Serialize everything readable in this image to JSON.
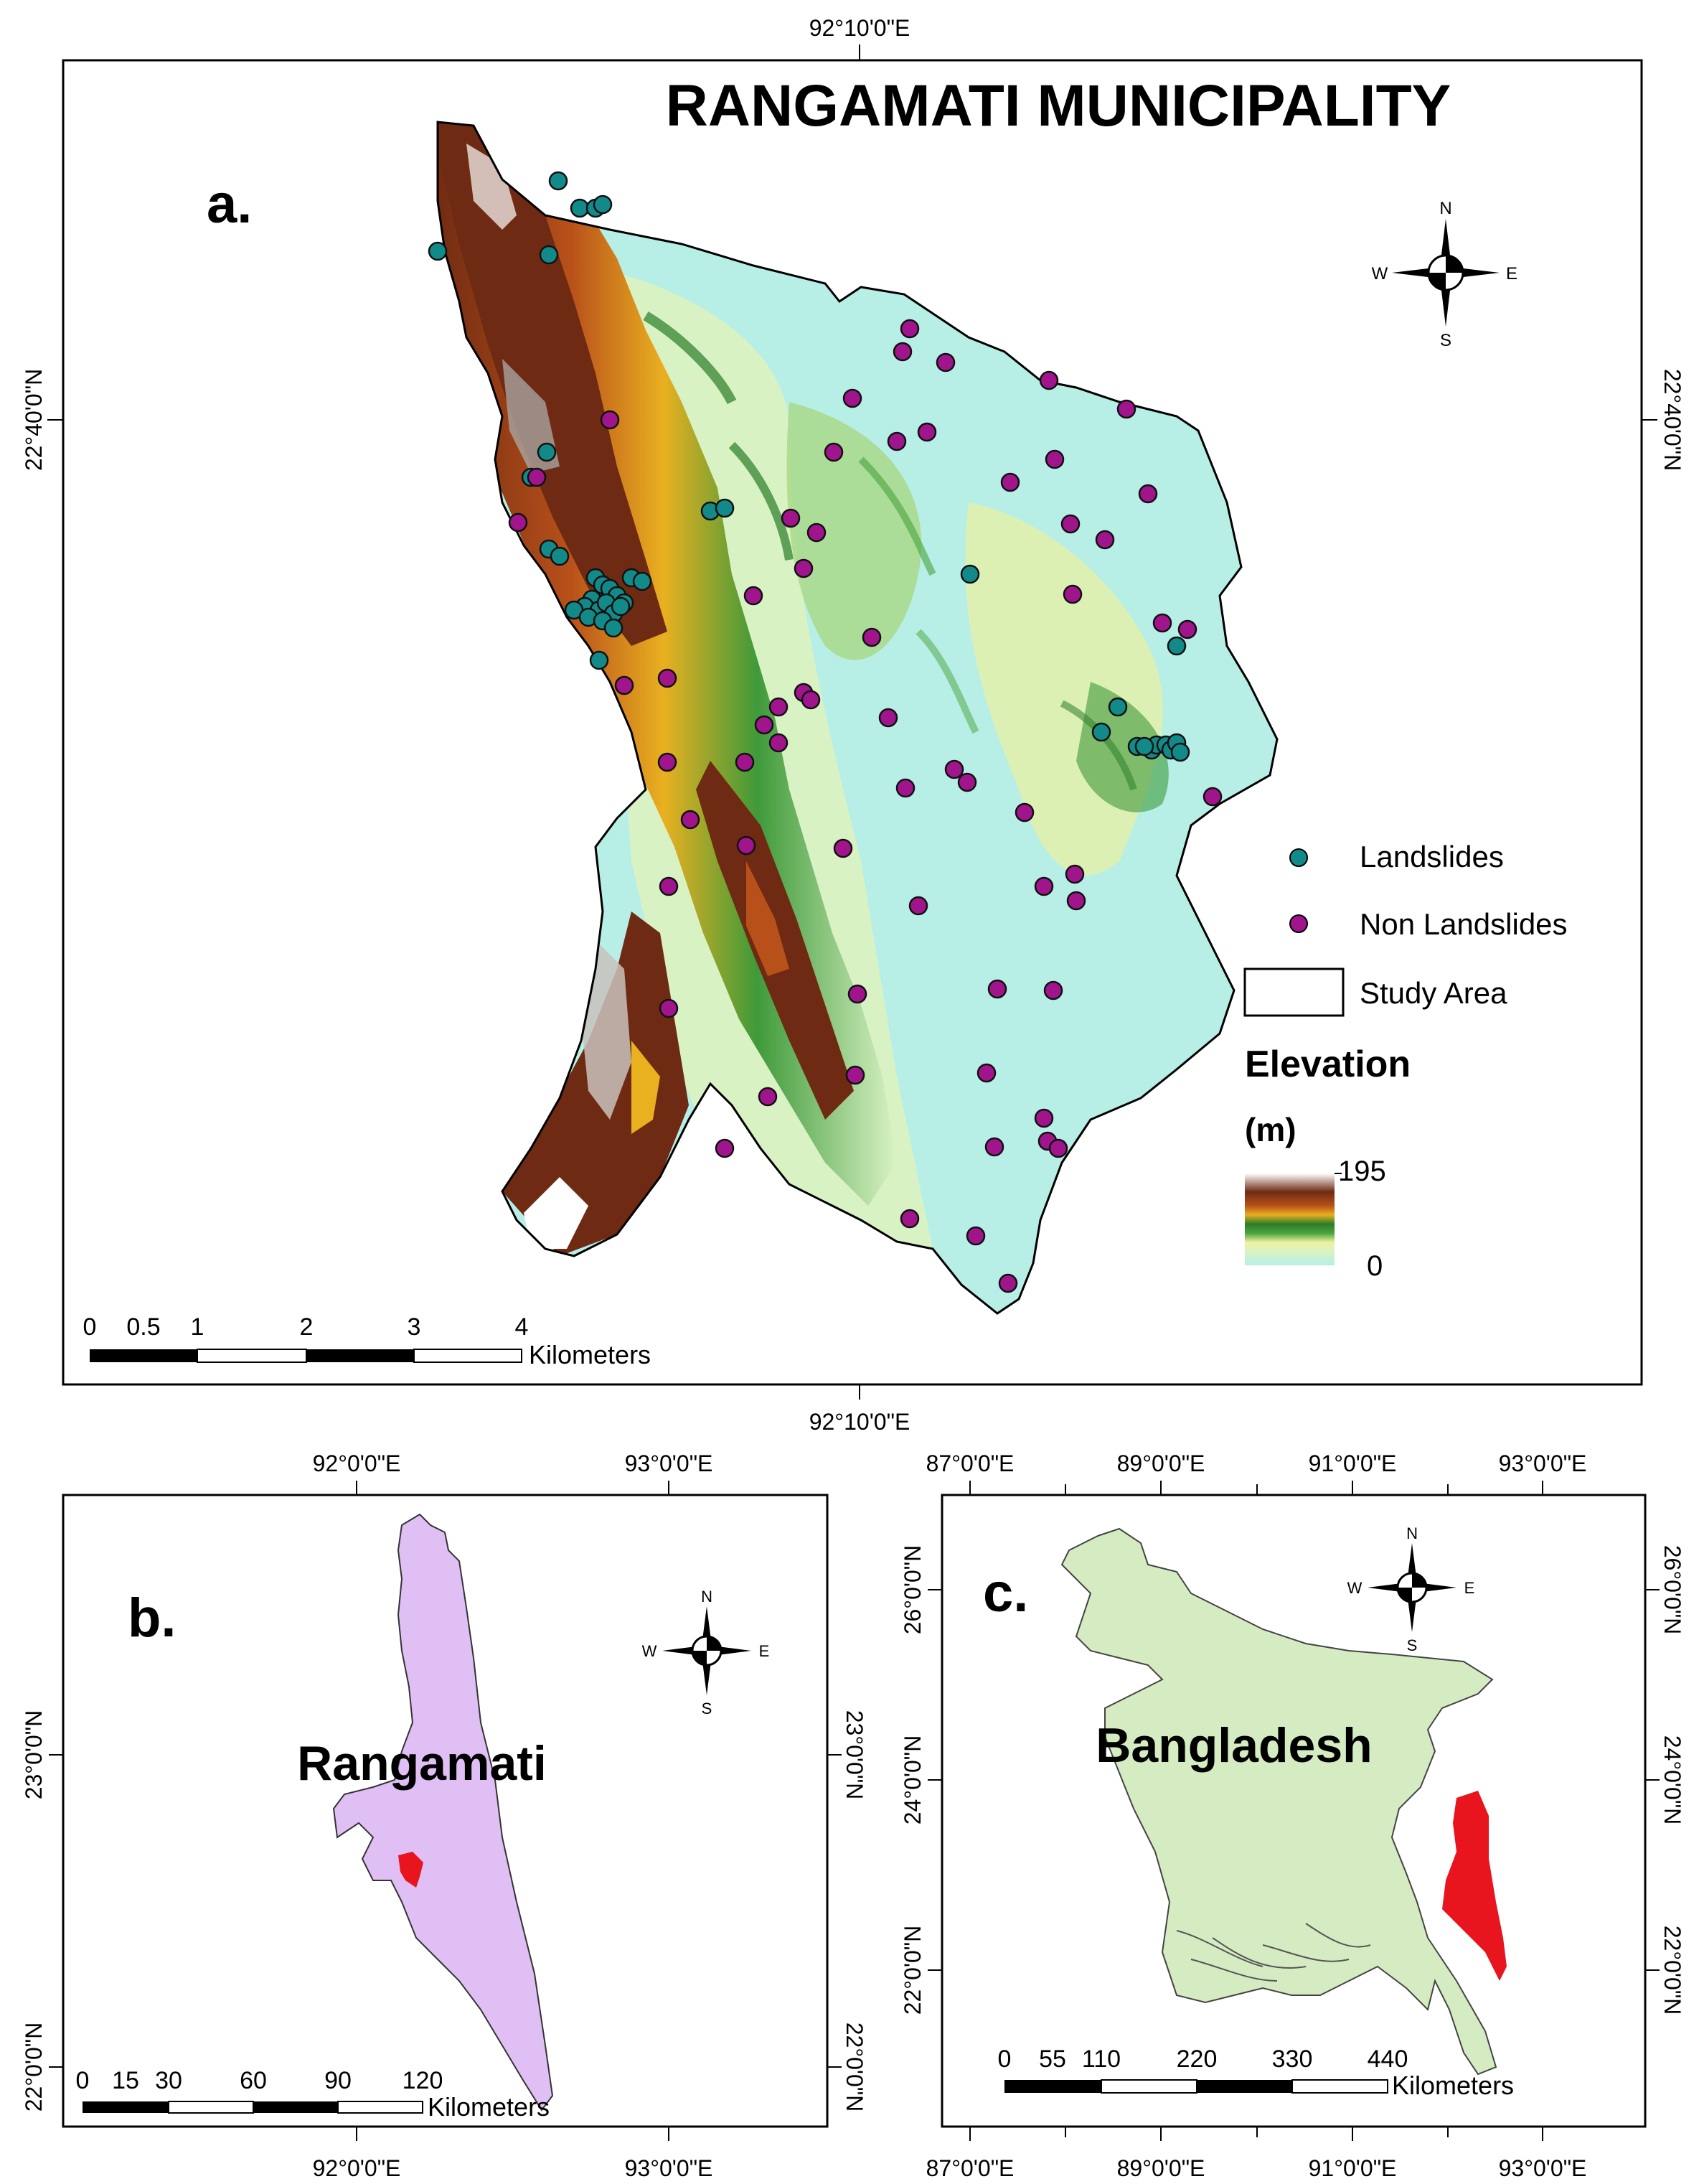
{
  "panel_a": {
    "title": "RANGAMATI MUNICIPALITY",
    "panel_label": "a.",
    "coords": {
      "top": "92°10'0\"E",
      "bottom": "92°10'0\"E",
      "left": "22°40'0\"N",
      "right": "22°40'0\"N"
    },
    "north_arrow": {
      "n": "N",
      "s": "S",
      "e": "E",
      "w": "W"
    },
    "legend": {
      "landslides": "Landslides",
      "non_landslides": "Non Landslides",
      "study_area": "Study Area",
      "elevation_title": "Elevation",
      "elevation_unit": "(m)",
      "elev_max": "195",
      "elev_min": "0",
      "colors": {
        "landslide": "#138a8a",
        "non_landslide": "#a0148c",
        "low": "#b7efe6",
        "mid_low": "#e6f0a8",
        "mid": "#3f9a3a",
        "mid_high": "#e2a21c",
        "high": "#7a2e12",
        "top": "#ffffff"
      }
    },
    "scale": {
      "ticks": [
        "0",
        "0.5",
        "1",
        "2",
        "3",
        "4"
      ],
      "unit": "Kilometers"
    }
  },
  "panel_b": {
    "panel_label": "b.",
    "region_name": "Rangamati",
    "coords": {
      "top": [
        "92°0'0\"E",
        "93°0'0\"E"
      ],
      "bottom": [
        "92°0'0\"E",
        "93°0'0\"E"
      ],
      "left": [
        "23°0'0\"N",
        "22°0'0\"N"
      ],
      "right": [
        "23°0'0\"N",
        "22°0'0\"N"
      ]
    },
    "north_arrow": {
      "n": "N",
      "s": "S",
      "e": "E",
      "w": "W"
    },
    "colors": {
      "district": "#e0bff5",
      "municipality": "#e8141e"
    },
    "scale": {
      "ticks": [
        "0",
        "15",
        "30",
        "60",
        "90",
        "120"
      ],
      "unit": "Kilometers"
    }
  },
  "panel_c": {
    "panel_label": "c.",
    "country_name": "Bangladesh",
    "coords": {
      "top": [
        "87°0'0\"E",
        "89°0'0\"E",
        "91°0'0\"E",
        "93°0'0\"E"
      ],
      "bottom": [
        "87°0'0\"E",
        "89°0'0\"E",
        "91°0'0\"E",
        "93°0'0\"E"
      ],
      "left": [
        "26°0'0\"N",
        "24°0'0\"N",
        "22°0'0\"N"
      ],
      "right": [
        "26°0'0\"N",
        "24°0'0\"N",
        "22°0'0\"N"
      ]
    },
    "north_arrow": {
      "n": "N",
      "s": "S",
      "e": "E",
      "w": "W"
    },
    "colors": {
      "country": "#d5ecc2",
      "district": "#e8141e"
    },
    "scale": {
      "ticks": [
        "0",
        "55",
        "110",
        "220",
        "330",
        "440"
      ],
      "unit": "Kilometers"
    }
  }
}
